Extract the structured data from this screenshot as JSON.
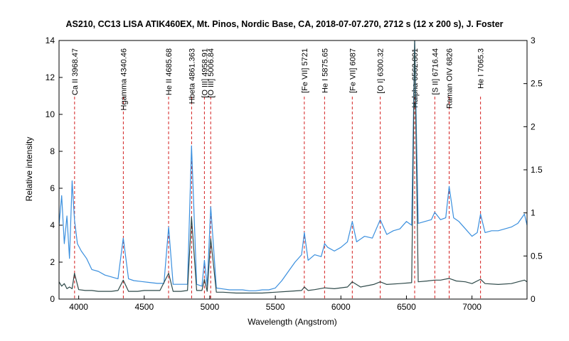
{
  "chart_data": {
    "type": "line",
    "title": "AS210, CC13 LISA ATIK460EX, Mt. Pinos, Nordic Base, CA, 2018-07-07.270, 2712 s (12 x 200 s), J. Foster",
    "xlabel": "Wavelength (Angstrom)",
    "ylabel": "Relative intensity",
    "xlim": [
      3850,
      7420
    ],
    "ylim": [
      0,
      14
    ],
    "y2lim": [
      0,
      3
    ],
    "xticks": [
      4000,
      4500,
      5000,
      5500,
      6000,
      6500,
      7000
    ],
    "yticks": [
      0,
      2,
      4,
      6,
      8,
      10,
      12,
      14
    ],
    "y2ticks": [
      0,
      0.5,
      1,
      1.5,
      2,
      2.5,
      3
    ],
    "y2tick_labels": [
      "0",
      "0.5",
      "1",
      "1.5",
      "2",
      "2.5",
      "3"
    ],
    "grid": false,
    "colors": {
      "scaled": "#3a8fde",
      "spectrum": "#2f4a4a",
      "marker": "#d42020"
    },
    "line_markers": [
      {
        "x": 3968.47,
        "label": "Ca II 3968.47"
      },
      {
        "x": 4340.46,
        "label": "Hgamma 4340.46"
      },
      {
        "x": 4685.68,
        "label": "He II 4685.68"
      },
      {
        "x": 4861.363,
        "label": "Hbeta 4861.363"
      },
      {
        "x": 4958.91,
        "label": "[O III] 4958.91"
      },
      {
        "x": 5006.84,
        "label": "[O III] 5006.84"
      },
      {
        "x": 5721,
        "label": "[Fe VII] 5721"
      },
      {
        "x": 5875.65,
        "label": "He I 5875.65"
      },
      {
        "x": 6087,
        "label": "[Fe VII] 6087"
      },
      {
        "x": 6300.32,
        "label": "[O I] 6300.32"
      },
      {
        "x": 6562.801,
        "label": "Halpha 6562.801"
      },
      {
        "x": 6716.44,
        "label": "[S II] 6716.44"
      },
      {
        "x": 6826,
        "label": "Raman OIV 6826"
      },
      {
        "x": 7065.3,
        "label": "He I 7065.3"
      }
    ],
    "series": [
      {
        "axis": "y",
        "color": "#3a8fde",
        "x": [
          3850,
          3870,
          3890,
          3910,
          3930,
          3950,
          3968,
          3990,
          4020,
          4060,
          4100,
          4150,
          4200,
          4250,
          4300,
          4340,
          4380,
          4420,
          4480,
          4540,
          4600,
          4650,
          4686,
          4720,
          4780,
          4830,
          4861,
          4900,
          4940,
          4959,
          4980,
          5007,
          5050,
          5100,
          5150,
          5200,
          5250,
          5300,
          5350,
          5400,
          5450,
          5500,
          5550,
          5600,
          5650,
          5700,
          5721,
          5750,
          5800,
          5850,
          5876,
          5900,
          5950,
          6000,
          6050,
          6087,
          6120,
          6180,
          6240,
          6300,
          6350,
          6400,
          6450,
          6500,
          6540,
          6563,
          6590,
          6640,
          6690,
          6716,
          6760,
          6800,
          6826,
          6860,
          6900,
          6950,
          7000,
          7040,
          7065,
          7100,
          7150,
          7200,
          7250,
          7300,
          7350,
          7400,
          7420
        ],
        "values": [
          4.0,
          5.6,
          3.0,
          4.5,
          2.2,
          6.4,
          4.3,
          3.0,
          2.6,
          2.2,
          1.6,
          1.5,
          1.3,
          1.2,
          1.1,
          3.3,
          1.1,
          1.0,
          0.95,
          0.9,
          0.85,
          0.85,
          3.9,
          0.8,
          0.8,
          0.8,
          8.3,
          0.8,
          0.7,
          2.1,
          0.7,
          5.0,
          0.6,
          0.55,
          0.5,
          0.5,
          0.5,
          0.45,
          0.45,
          0.5,
          0.5,
          0.6,
          1.0,
          1.5,
          2.0,
          2.4,
          3.6,
          2.1,
          2.4,
          2.3,
          3.0,
          2.8,
          2.6,
          2.8,
          3.1,
          4.2,
          3.1,
          3.4,
          3.3,
          4.3,
          3.5,
          3.7,
          3.8,
          4.2,
          4.0,
          14.0,
          4.1,
          4.2,
          4.3,
          4.7,
          4.3,
          4.4,
          6.1,
          4.4,
          4.2,
          3.8,
          3.4,
          3.6,
          4.6,
          3.6,
          3.7,
          3.7,
          3.8,
          3.9,
          4.1,
          4.6,
          4.0
        ]
      },
      {
        "axis": "y2",
        "color": "#2f4a4a",
        "x": [
          3850,
          3870,
          3890,
          3910,
          3930,
          3950,
          3968,
          4000,
          4050,
          4100,
          4150,
          4200,
          4250,
          4300,
          4340,
          4380,
          4450,
          4500,
          4560,
          4620,
          4686,
          4720,
          4780,
          4830,
          4861,
          4900,
          4940,
          4959,
          4980,
          5007,
          5050,
          5100,
          5200,
          5300,
          5400,
          5500,
          5600,
          5700,
          5721,
          5750,
          5800,
          5876,
          5950,
          6050,
          6087,
          6150,
          6250,
          6300,
          6350,
          6450,
          6540,
          6563,
          6590,
          6660,
          6716,
          6760,
          6826,
          6880,
          6950,
          7000,
          7065,
          7100,
          7200,
          7300,
          7400,
          7420
        ],
        "values": [
          0.2,
          0.15,
          0.18,
          0.12,
          0.14,
          0.12,
          0.3,
          0.11,
          0.1,
          0.1,
          0.09,
          0.09,
          0.09,
          0.1,
          0.22,
          0.09,
          0.09,
          0.1,
          0.1,
          0.1,
          0.3,
          0.09,
          0.09,
          0.1,
          0.95,
          0.1,
          0.1,
          0.23,
          0.09,
          0.7,
          0.08,
          0.08,
          0.07,
          0.07,
          0.07,
          0.08,
          0.09,
          0.1,
          0.14,
          0.1,
          0.11,
          0.13,
          0.12,
          0.14,
          0.2,
          0.14,
          0.17,
          0.2,
          0.17,
          0.18,
          0.19,
          3.0,
          0.2,
          0.21,
          0.22,
          0.22,
          0.24,
          0.21,
          0.2,
          0.18,
          0.23,
          0.18,
          0.17,
          0.18,
          0.22,
          0.2
        ]
      }
    ]
  }
}
